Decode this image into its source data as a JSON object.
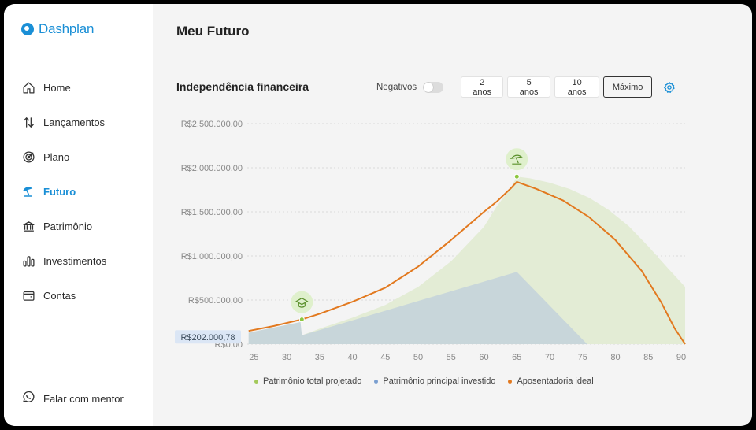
{
  "app": {
    "name": "Dashplan",
    "brand_color": "#1a8fd6"
  },
  "sidebar": {
    "items": [
      {
        "label": "Home",
        "icon": "home-icon",
        "active": false
      },
      {
        "label": "Lançamentos",
        "icon": "arrows-updown-icon",
        "active": false
      },
      {
        "label": "Plano",
        "icon": "target-icon",
        "active": false
      },
      {
        "label": "Futuro",
        "icon": "beach-umbrella-icon",
        "active": true
      },
      {
        "label": "Patrimônio",
        "icon": "bank-icon",
        "active": false
      },
      {
        "label": "Investimentos",
        "icon": "bar-chart-icon",
        "active": false
      },
      {
        "label": "Contas",
        "icon": "wallet-icon",
        "active": false
      }
    ],
    "mentor": {
      "label": "Falar com mentor",
      "icon": "whatsapp-icon"
    }
  },
  "page": {
    "title": "Meu Futuro"
  },
  "section": {
    "title": "Independência financeira",
    "negatives_label": "Negativos",
    "negatives_on": false,
    "ranges": [
      "2 anos",
      "5 anos",
      "10 anos",
      "Máximo"
    ],
    "selected_range": "Máximo"
  },
  "chart_data": {
    "type": "area",
    "x_ticks": [
      25,
      30,
      35,
      40,
      45,
      50,
      55,
      60,
      65,
      70,
      75,
      80,
      85,
      90
    ],
    "y_ticks": [
      "R$0,00",
      "R$500.000,00",
      "R$1.000.000,00",
      "R$1.500.000,00",
      "R$2.000.000,00",
      "R$2.500.000,00"
    ],
    "ylim": [
      0,
      2500000
    ],
    "xlim": [
      24,
      90.6
    ],
    "current_value_label": "R$202.000,78",
    "grid": true,
    "legend_position": "bottom",
    "series": [
      {
        "name": "Patrimônio total projetado",
        "color": "#a3c95a",
        "fill": "#e3ecd5",
        "x": [
          32.3,
          33,
          35,
          40,
          45,
          50,
          55,
          60,
          62,
          64,
          65,
          67,
          70,
          73,
          76,
          79,
          82,
          85,
          88,
          90.6
        ],
        "y": [
          100000,
          120000,
          175000,
          300000,
          445000,
          650000,
          940000,
          1330000,
          1570000,
          1760000,
          1900000,
          1880000,
          1830000,
          1760000,
          1660000,
          1520000,
          1340000,
          1110000,
          860000,
          650000
        ]
      },
      {
        "name": "Patrimônio principal investido",
        "color": "#7a9fd0",
        "fill": "#c8d6da",
        "x": [
          24.2,
          32.1,
          32.3,
          65,
          75.7
        ],
        "y": [
          130000,
          250000,
          100000,
          820000,
          0
        ]
      },
      {
        "name": "Aposentadoria ideal",
        "color": "#e2791f",
        "x": [
          24.2,
          28,
          32.3,
          35,
          40,
          45,
          50,
          55,
          60,
          62,
          64,
          65,
          68,
          72,
          76,
          80,
          84,
          87,
          89,
          90.6
        ],
        "y": [
          150000,
          205000,
          280000,
          345000,
          480000,
          640000,
          880000,
          1180000,
          1500000,
          1620000,
          1760000,
          1840000,
          1760000,
          1630000,
          1440000,
          1180000,
          830000,
          470000,
          180000,
          0
        ]
      }
    ],
    "milestones": [
      {
        "x": 32.3,
        "y": 280000,
        "icon": "graduation-cap-icon"
      },
      {
        "x": 65,
        "y": 1900000,
        "icon": "beach-umbrella-icon"
      }
    ]
  }
}
